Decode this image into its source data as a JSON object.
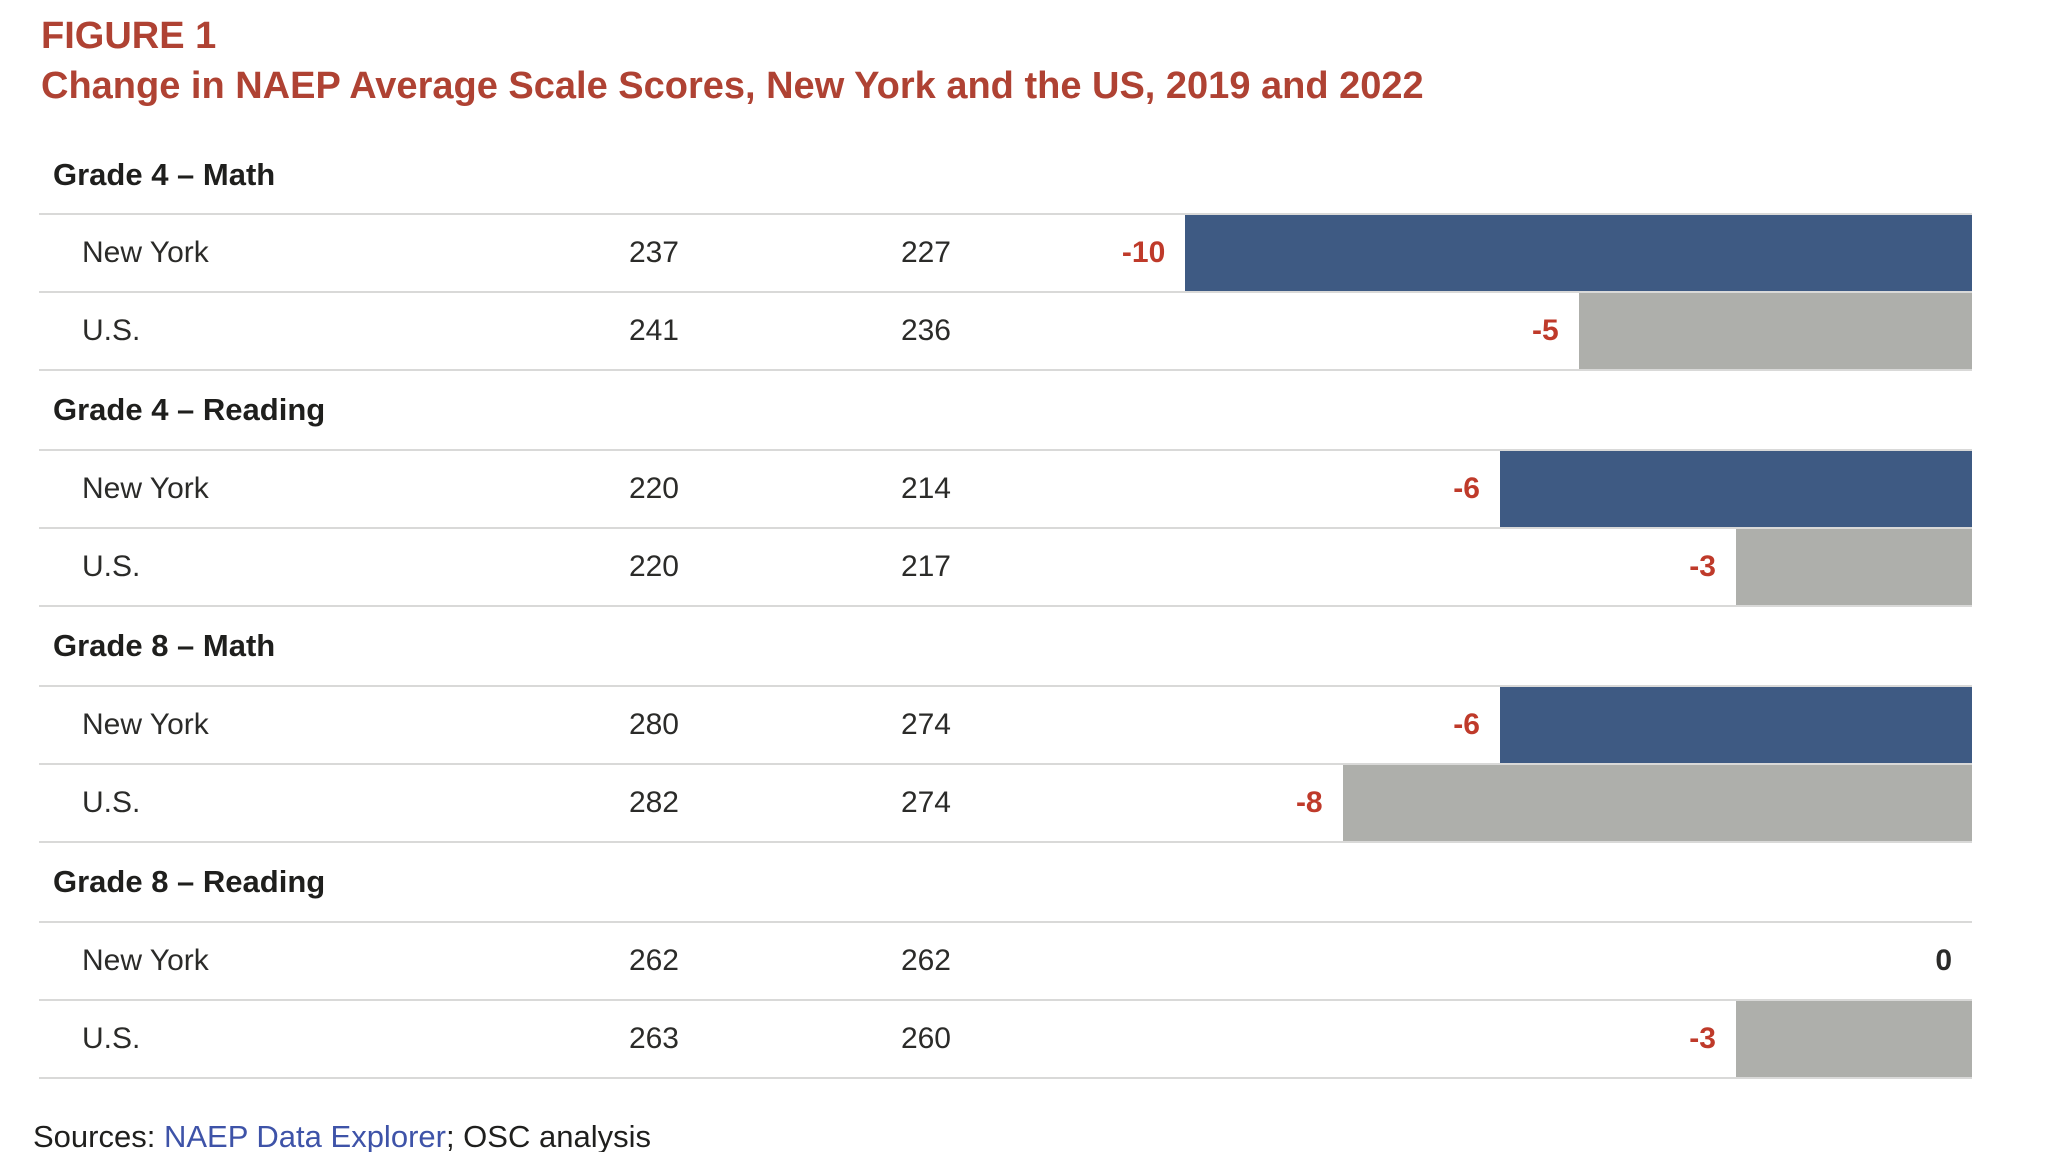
{
  "colors": {
    "figure_red": "#af4233",
    "change_negative": "#bf3a2a",
    "change_zero": "#2b2b29",
    "new_york_bar": "#3e5a83",
    "us_bar": "#aeafab",
    "divider": "#d9d9d8",
    "link_blue": "#3e53a8"
  },
  "chart_data": {
    "type": "bar",
    "orientation": "horizontal",
    "title": "FIGURE 1",
    "subtitle": "Change in NAEP Average Scale Scores, New York and the US, 2019 and 2022",
    "value_note": "bars depict change in average scale score, 2019 to 2022",
    "bar_scale_pct_per_unit": 4.07,
    "bar_alignment": "right",
    "grid": "row dividers only",
    "legend": "none (New York = blue bars, U.S. = gray bars)",
    "sections": [
      {
        "label": "Grade 4 – Math",
        "rows": [
          {
            "label": "New York",
            "series": "new_york",
            "score_2019": 237,
            "score_2022": 227,
            "change": -10,
            "change_label": "-10"
          },
          {
            "label": "U.S.",
            "series": "us",
            "score_2019": 241,
            "score_2022": 236,
            "change": -5,
            "change_label": "-5"
          }
        ]
      },
      {
        "label": "Grade 4 – Reading",
        "rows": [
          {
            "label": "New York",
            "series": "new_york",
            "score_2019": 220,
            "score_2022": 214,
            "change": -6,
            "change_label": "-6"
          },
          {
            "label": "U.S.",
            "series": "us",
            "score_2019": 220,
            "score_2022": 217,
            "change": -3,
            "change_label": "-3"
          }
        ]
      },
      {
        "label": "Grade 8 – Math",
        "rows": [
          {
            "label": "New York",
            "series": "new_york",
            "score_2019": 280,
            "score_2022": 274,
            "change": -6,
            "change_label": "-6"
          },
          {
            "label": "U.S.",
            "series": "us",
            "score_2019": 282,
            "score_2022": 274,
            "change": -8,
            "change_label": "-8"
          }
        ]
      },
      {
        "label": "Grade 8 – Reading",
        "rows": [
          {
            "label": "New York",
            "series": "new_york",
            "score_2019": 262,
            "score_2022": 262,
            "change": 0,
            "change_label": "0"
          },
          {
            "label": "U.S.",
            "series": "us",
            "score_2019": 263,
            "score_2022": 260,
            "change": -3,
            "change_label": "-3"
          }
        ]
      }
    ]
  },
  "sources": {
    "prefix": "Sources: ",
    "link_text": "NAEP Data Explorer",
    "suffix": "; OSC analysis"
  }
}
